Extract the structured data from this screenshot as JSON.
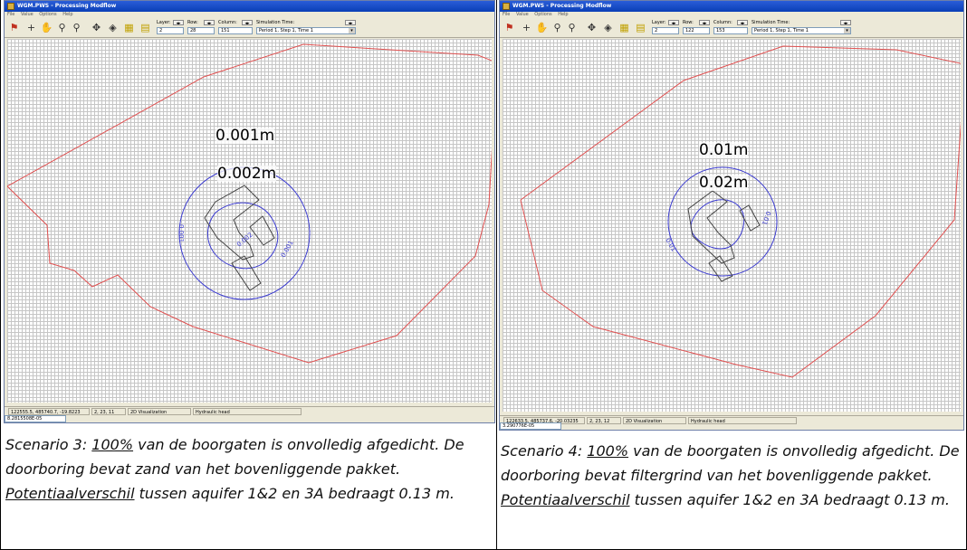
{
  "panels": [
    {
      "window_title": "WGM.PWS - Processing Modflow",
      "menu": [
        "File",
        "Value",
        "Options",
        "Help"
      ],
      "layer_label": "Layer:",
      "layer_value": "2",
      "row_label": "Row:",
      "row_value": "28",
      "column_label": "Column:",
      "column_value": "151",
      "sim_time_label": "Simulation Time:",
      "sim_time_value": "Period 1, Step 1, Time 1",
      "contour_labels": [
        "0.001m",
        "0.002m"
      ],
      "contour_inline": [
        "0.001",
        "0.002",
        "0.001"
      ],
      "status": {
        "coords": "122555.5, 485740.7, -19.8223",
        "cell": "2, 23, 11",
        "mode": "2D Visualization",
        "value_type": "Hydraulic head",
        "head_value": "8.2815508E-05"
      },
      "caption": {
        "pre": "Scenario 3: ",
        "u1": "100%",
        "mid1": " van de boorgaten is onvolledig afgedicht. De doorboring bevat zand van het bovenliggende pakket. ",
        "u2": "Potentiaalverschil",
        "post": " tussen aquifer 1&2 en 3A bedraagt 0.13 m."
      }
    },
    {
      "window_title": "WGM.PWS - Processing Modflow",
      "menu": [
        "File",
        "Value",
        "Options",
        "Help"
      ],
      "layer_label": "Layer:",
      "layer_value": "2",
      "row_label": "Row:",
      "row_value": "122",
      "column_label": "Column:",
      "column_value": "153",
      "sim_time_label": "Simulation Time:",
      "sim_time_value": "Period 1, Step 1, Time 1",
      "contour_labels": [
        "0.01m",
        "0.02m"
      ],
      "contour_inline": [
        "0.01",
        "0.01"
      ],
      "status": {
        "coords": "122633.5, 485737.6, -20.03235",
        "cell": "2, 23, 12",
        "mode": "2D Visualization",
        "value_type": "Hydraulic head",
        "head_value": "3.290776E-05"
      },
      "caption": {
        "pre": "Scenario 4: ",
        "u1": "100%",
        "mid1": " van de boorgaten  is onvolledig afgedicht. De doorboring bevat filtergrind van het bovenliggende pakket. ",
        "u2": "Potentiaalverschil",
        "post": " tussen aquifer 1&2 en 3A bedraagt 0.13 m."
      }
    }
  ],
  "colors": {
    "boundary": "#e05050",
    "contour": "#3b3bd0",
    "well": "#444444"
  },
  "icons": [
    "exit-icon",
    "cursor-cross-icon",
    "hand-pan-icon",
    "zoom-in-icon",
    "zoom-out-icon",
    "move-icon",
    "target-icon",
    "column-color-icon",
    "row-color-icon"
  ]
}
